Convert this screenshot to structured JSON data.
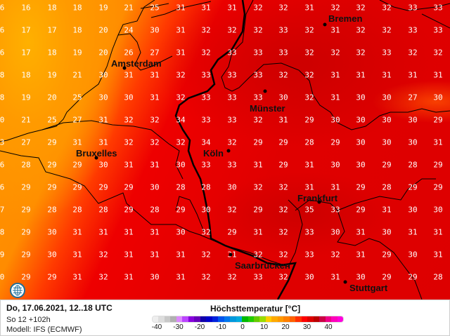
{
  "map": {
    "grid_values": [
      [
        "6",
        "16",
        "18",
        "18",
        "19",
        "21",
        "25",
        "31",
        "31",
        "31",
        "32",
        "32",
        "31",
        "32",
        "32",
        "32",
        "33",
        "33"
      ],
      [
        "6",
        "17",
        "17",
        "18",
        "20",
        "24",
        "30",
        "31",
        "32",
        "32",
        "32",
        "33",
        "32",
        "31",
        "32",
        "32",
        "33",
        "33"
      ],
      [
        "6",
        "17",
        "18",
        "19",
        "20",
        "26",
        "27",
        "31",
        "32",
        "33",
        "33",
        "33",
        "32",
        "32",
        "32",
        "33",
        "32",
        "32"
      ],
      [
        "8",
        "18",
        "19",
        "21",
        "30",
        "31",
        "31",
        "32",
        "33",
        "33",
        "33",
        "32",
        "32",
        "31",
        "31",
        "31",
        "31",
        "31"
      ],
      [
        "8",
        "19",
        "20",
        "25",
        "30",
        "30",
        "31",
        "32",
        "33",
        "33",
        "33",
        "30",
        "32",
        "31",
        "30",
        "30",
        "27",
        "30"
      ],
      [
        "0",
        "21",
        "25",
        "27",
        "31",
        "32",
        "32",
        "34",
        "33",
        "33",
        "32",
        "31",
        "29",
        "30",
        "30",
        "30",
        "30",
        "29"
      ],
      [
        "3",
        "27",
        "29",
        "31",
        "31",
        "32",
        "32",
        "32",
        "34",
        "32",
        "29",
        "29",
        "28",
        "29",
        "30",
        "30",
        "30",
        "31"
      ],
      [
        "6",
        "28",
        "29",
        "29",
        "30",
        "31",
        "31",
        "30",
        "33",
        "33",
        "31",
        "29",
        "31",
        "30",
        "30",
        "29",
        "28",
        "29"
      ],
      [
        "6",
        "29",
        "29",
        "29",
        "29",
        "29",
        "30",
        "28",
        "28",
        "30",
        "32",
        "32",
        "31",
        "31",
        "29",
        "28",
        "29",
        "29"
      ],
      [
        "7",
        "29",
        "28",
        "28",
        "28",
        "29",
        "28",
        "29",
        "30",
        "32",
        "29",
        "32",
        "35",
        "33",
        "29",
        "31",
        "30",
        "30"
      ],
      [
        "8",
        "29",
        "30",
        "31",
        "31",
        "31",
        "31",
        "30",
        "32",
        "29",
        "31",
        "32",
        "33",
        "30",
        "31",
        "30",
        "31",
        "31"
      ],
      [
        "9",
        "29",
        "30",
        "31",
        "32",
        "31",
        "31",
        "31",
        "32",
        "31",
        "32",
        "32",
        "33",
        "32",
        "31",
        "29",
        "30",
        "31"
      ],
      [
        "0",
        "29",
        "29",
        "31",
        "32",
        "31",
        "30",
        "31",
        "32",
        "32",
        "33",
        "32",
        "30",
        "31",
        "30",
        "29",
        "29",
        "28"
      ]
    ],
    "cities": {
      "bremen": "Bremen",
      "amsterdam": "Amsterdam",
      "muenster": "Münster",
      "koeln": "Köln",
      "bruxelles": "Bruxelles",
      "frankfurt": "Frankfurt",
      "saarbruecken": "Saarbrücken",
      "stuttgart": "Stuttgart"
    }
  },
  "footer": {
    "run_date": "Do, 17.06.2021, 12..18 UTC",
    "run_offset": "So 12 +102h",
    "model": "Modell: IFS (ECMWF)",
    "legend_title": "Höchsttemperatur [°C]",
    "ticks": [
      "-40",
      "-30",
      "-20",
      "-10",
      "0",
      "10",
      "20",
      "30",
      "40"
    ],
    "colorbar_colors": [
      "#eeeeee",
      "#dddddd",
      "#c8c8c8",
      "#b0b0b0",
      "#dd88ff",
      "#bb44ff",
      "#8800dd",
      "#6600bb",
      "#1100aa",
      "#0000cc",
      "#0022dd",
      "#0055ee",
      "#0077ee",
      "#0099dd",
      "#00aadd",
      "#00bb00",
      "#22cc00",
      "#66cc00",
      "#99dd00",
      "#ffcc00",
      "#ffaa00",
      "#ff9900",
      "#ff8000",
      "#ff6000",
      "#ff3000",
      "#ff0000",
      "#dd0000",
      "#bb0000",
      "#cc0044",
      "#ee0088",
      "#ff00bb",
      "#ff00dd"
    ],
    "logo_icon": "globe-icon"
  }
}
